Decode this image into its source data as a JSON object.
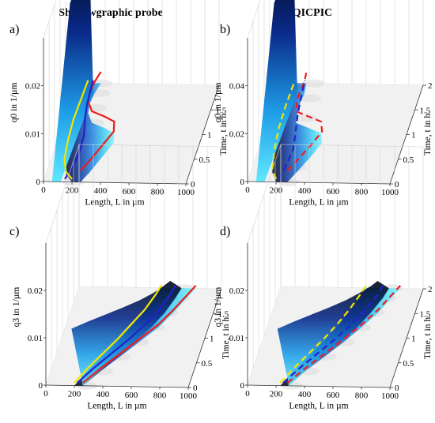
{
  "column_titles": [
    "Shadowgraphic probe",
    "QICPIC"
  ],
  "chart_data": [
    {
      "panel": "a)",
      "type": "area",
      "zlabel": "q0 in 1/µm",
      "xlabel": "Length, L in µm",
      "ylabel": "Time, t in h",
      "x_ticks": [
        "0",
        "200",
        "400",
        "600",
        "800",
        "1000"
      ],
      "y_ticks": [
        "0",
        "0.5",
        "1",
        "1.5"
      ],
      "z_ticks": [
        "0",
        "0.01",
        "0.02"
      ],
      "xlim": [
        0,
        1000
      ],
      "ylim": [
        0,
        2
      ],
      "zlim": [
        0,
        0.03
      ],
      "series": [
        {
          "style": "solid",
          "color": "#ee1c1c",
          "x": [
            260,
            300,
            350,
            400,
            380,
            300,
            200,
            150,
            140,
            150,
            170
          ],
          "y": [
            0.0,
            0.2,
            0.5,
            0.8,
            1.0,
            1.1,
            1.2,
            1.4,
            1.6,
            1.8,
            2.0
          ]
        },
        {
          "style": "solid",
          "color": "#2222cc",
          "x": [
            150,
            170,
            190,
            180,
            150,
            130,
            120,
            115
          ],
          "y": [
            0.0,
            0.2,
            0.5,
            0.9,
            1.2,
            1.5,
            1.8,
            2.0
          ]
        },
        {
          "style": "solid",
          "color": "#f2e600",
          "x": [
            200,
            140,
            100,
            80,
            70,
            75,
            80
          ],
          "y": [
            0.0,
            0.15,
            0.4,
            0.8,
            1.2,
            1.6,
            2.0
          ]
        }
      ]
    },
    {
      "panel": "b)",
      "type": "area",
      "zlabel": "q0 in 1/µm",
      "xlabel": "Length, L in µm",
      "ylabel": "Time, t in h",
      "x_ticks": [
        "0",
        "200",
        "400",
        "600",
        "800",
        "1000"
      ],
      "y_ticks": [
        "0",
        "0.5",
        "1",
        "1.5",
        "2"
      ],
      "z_ticks": [
        "0",
        "0.02",
        "0.04"
      ],
      "xlim": [
        0,
        1000
      ],
      "ylim": [
        0,
        2
      ],
      "zlim": [
        0,
        0.06
      ],
      "series": [
        {
          "style": "dashed",
          "color": "#ee1c1c",
          "x": [
            280,
            320,
            380,
            430,
            400,
            300,
            200,
            180,
            190,
            180
          ],
          "y": [
            0.0,
            0.2,
            0.5,
            0.8,
            1.0,
            1.1,
            1.2,
            1.5,
            1.8,
            2.0
          ]
        },
        {
          "style": "dashed",
          "color": "#2222cc",
          "x": [
            220,
            240,
            250,
            230,
            200,
            180,
            170
          ],
          "y": [
            0.0,
            0.3,
            0.6,
            0.9,
            1.3,
            1.7,
            2.0
          ]
        },
        {
          "style": "dashed",
          "color": "#f2e600",
          "x": [
            200,
            150,
            120,
            100,
            95,
            100
          ],
          "y": [
            0.0,
            0.2,
            0.6,
            1.0,
            1.5,
            2.0
          ]
        }
      ]
    },
    {
      "panel": "c)",
      "type": "area",
      "zlabel": "q3 in 1/µm",
      "xlabel": "Length, L in µm",
      "ylabel": "Time, t in h",
      "x_ticks": [
        "0",
        "200",
        "400",
        "600",
        "800",
        "1000"
      ],
      "y_ticks": [
        "0",
        "0.5",
        "1",
        "1.5"
      ],
      "z_ticks": [
        "0",
        "0.01",
        "0.02"
      ],
      "xlim": [
        0,
        1000
      ],
      "ylim": [
        0,
        2
      ],
      "zlim": [
        0,
        0.03
      ],
      "series": [
        {
          "style": "solid",
          "color": "#ee1c1c",
          "x": [
            260,
            350,
            450,
            550,
            650,
            720,
            780,
            820
          ],
          "y": [
            0.0,
            0.3,
            0.6,
            0.9,
            1.2,
            1.5,
            1.8,
            2.0
          ]
        },
        {
          "style": "solid",
          "color": "#2222cc",
          "x": [
            220,
            300,
            390,
            480,
            560,
            620,
            660,
            680
          ],
          "y": [
            0.0,
            0.3,
            0.6,
            0.9,
            1.2,
            1.5,
            1.8,
            2.0
          ]
        },
        {
          "style": "solid",
          "color": "#f2e600",
          "x": [
            200,
            260,
            330,
            400,
            460,
            520,
            560,
            580
          ],
          "y": [
            0.0,
            0.3,
            0.6,
            0.9,
            1.2,
            1.5,
            1.8,
            2.0
          ]
        }
      ]
    },
    {
      "panel": "d)",
      "type": "area",
      "zlabel": "q3 in 1/µm",
      "xlabel": "Length, L in µm",
      "ylabel": "Time, t in h",
      "x_ticks": [
        "0",
        "200",
        "400",
        "600",
        "800",
        "1000"
      ],
      "y_ticks": [
        "0",
        "0.5",
        "1",
        "1.5",
        "2"
      ],
      "z_ticks": [
        "0",
        "0.01",
        "0.02"
      ],
      "xlim": [
        0,
        1000
      ],
      "ylim": [
        0,
        2
      ],
      "zlim": [
        0,
        0.03
      ],
      "series": [
        {
          "style": "dashed",
          "color": "#ee1c1c",
          "x": [
            280,
            370,
            470,
            570,
            660,
            740,
            800,
            840
          ],
          "y": [
            0.0,
            0.3,
            0.6,
            0.9,
            1.2,
            1.5,
            1.8,
            2.0
          ]
        },
        {
          "style": "dashed",
          "color": "#2222cc",
          "x": [
            250,
            330,
            420,
            510,
            590,
            650,
            700,
            720
          ],
          "y": [
            0.0,
            0.3,
            0.6,
            0.9,
            1.2,
            1.5,
            1.8,
            2.0
          ]
        },
        {
          "style": "dashed",
          "color": "#f2e600",
          "x": [
            230,
            290,
            360,
            430,
            490,
            540,
            580,
            600
          ],
          "y": [
            0.0,
            0.3,
            0.6,
            0.9,
            1.2,
            1.5,
            1.8,
            2.0
          ]
        }
      ]
    }
  ]
}
